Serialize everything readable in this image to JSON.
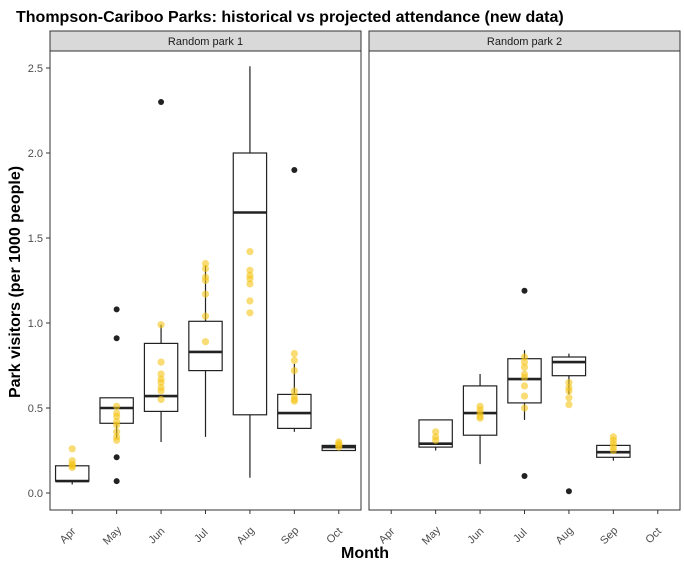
{
  "chart_data": {
    "type": "boxplot",
    "title": "Thompson-Cariboo Parks: historical vs projected attendance (new data)",
    "xlabel": "Month",
    "ylabel": "Park visitors (per 1000 people)",
    "ylim": [
      -0.1,
      2.6
    ],
    "yticks": [
      0.0,
      0.5,
      1.0,
      1.5,
      2.0,
      2.5
    ],
    "ytick_labels": [
      "0.0",
      "0.5",
      "1.0",
      "1.5",
      "2.0",
      "2.5"
    ],
    "categories": [
      "Apr",
      "May",
      "Jun",
      "Jul",
      "Aug",
      "Sep",
      "Oct"
    ],
    "grid": false,
    "colors": {
      "box": "#222222",
      "outlier": "#222222",
      "projected": "#F5C518",
      "strip_bg": "#D9D9D9"
    },
    "panels": [
      {
        "name": "Random park 1",
        "boxes": [
          {
            "month": "Apr",
            "min": 0.05,
            "q1": 0.07,
            "median": 0.07,
            "q3": 0.16,
            "max": 0.16,
            "outliers": []
          },
          {
            "month": "May",
            "min": 0.32,
            "q1": 0.41,
            "median": 0.5,
            "q3": 0.56,
            "max": 0.56,
            "outliers": [
              1.08,
              0.91,
              0.21,
              0.07
            ]
          },
          {
            "month": "Jun",
            "min": 0.3,
            "q1": 0.48,
            "median": 0.57,
            "q3": 0.88,
            "max": 0.99,
            "outliers": [
              2.3
            ]
          },
          {
            "month": "Jul",
            "min": 0.33,
            "q1": 0.72,
            "median": 0.83,
            "q3": 1.01,
            "max": 1.34,
            "outliers": []
          },
          {
            "month": "Aug",
            "min": 0.09,
            "q1": 0.46,
            "median": 1.65,
            "q3": 2.0,
            "max": 2.51,
            "outliers": []
          },
          {
            "month": "Sep",
            "min": 0.36,
            "q1": 0.38,
            "median": 0.47,
            "q3": 0.58,
            "max": 0.76,
            "outliers": [
              1.9
            ]
          },
          {
            "month": "Oct",
            "min": 0.25,
            "q1": 0.25,
            "median": 0.27,
            "q3": 0.28,
            "max": 0.28,
            "outliers": []
          }
        ],
        "projected": [
          {
            "month": "Apr",
            "values": [
              0.26,
              0.19,
              0.17,
              0.16,
              0.15
            ]
          },
          {
            "month": "May",
            "values": [
              0.51,
              0.47,
              0.45,
              0.42,
              0.4,
              0.36,
              0.33,
              0.31
            ]
          },
          {
            "month": "Jun",
            "values": [
              0.99,
              0.77,
              0.7,
              0.67,
              0.65,
              0.62,
              0.6,
              0.55
            ]
          },
          {
            "month": "Jul",
            "values": [
              1.35,
              1.32,
              1.27,
              1.25,
              1.17,
              1.04,
              0.89
            ]
          },
          {
            "month": "Aug",
            "values": [
              1.42,
              1.31,
              1.28,
              1.26,
              1.23,
              1.13,
              1.06
            ]
          },
          {
            "month": "Sep",
            "values": [
              0.82,
              0.78,
              0.72,
              0.6,
              0.57,
              0.55,
              0.54
            ]
          },
          {
            "month": "Oct",
            "values": [
              0.3,
              0.29,
              0.28,
              0.27
            ]
          }
        ]
      },
      {
        "name": "Random park 2",
        "boxes": [
          {
            "month": "May",
            "min": 0.25,
            "q1": 0.27,
            "median": 0.29,
            "q3": 0.43,
            "max": 0.43,
            "outliers": []
          },
          {
            "month": "Jun",
            "min": 0.17,
            "q1": 0.34,
            "median": 0.47,
            "q3": 0.63,
            "max": 0.7,
            "outliers": []
          },
          {
            "month": "Jul",
            "min": 0.43,
            "q1": 0.53,
            "median": 0.67,
            "q3": 0.79,
            "max": 0.84,
            "outliers": [
              1.19,
              0.1
            ]
          },
          {
            "month": "Aug",
            "min": 0.58,
            "q1": 0.69,
            "median": 0.77,
            "q3": 0.8,
            "max": 0.82,
            "outliers": [
              0.01
            ]
          },
          {
            "month": "Sep",
            "min": 0.19,
            "q1": 0.21,
            "median": 0.24,
            "q3": 0.28,
            "max": 0.28,
            "outliers": []
          }
        ],
        "projected": [
          {
            "month": "May",
            "values": [
              0.36,
              0.33,
              0.31
            ]
          },
          {
            "month": "Jun",
            "values": [
              0.51,
              0.49,
              0.47,
              0.45,
              0.44
            ]
          },
          {
            "month": "Jul",
            "values": [
              0.8,
              0.77,
              0.74,
              0.7,
              0.68,
              0.63,
              0.57,
              0.5
            ]
          },
          {
            "month": "Aug",
            "values": [
              0.65,
              0.62,
              0.6,
              0.56,
              0.52
            ]
          },
          {
            "month": "Sep",
            "values": [
              0.33,
              0.31,
              0.29,
              0.27,
              0.25
            ]
          }
        ]
      }
    ]
  }
}
